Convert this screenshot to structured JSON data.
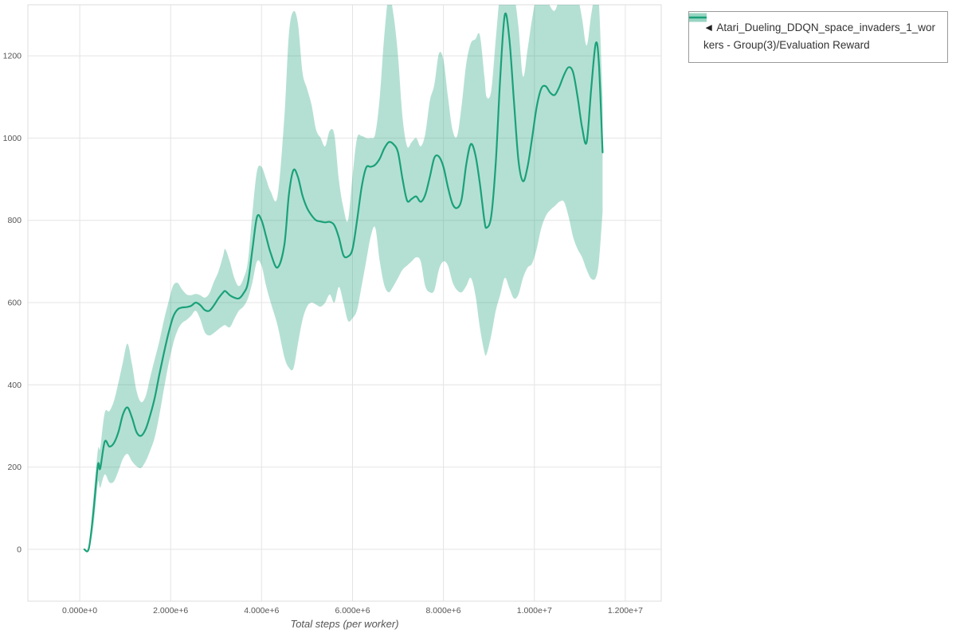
{
  "legend": {
    "marker": "◄",
    "label": "Atari_Dueling_DDQN_space_invaders_1_workers - Group(3)/Evaluation Reward"
  },
  "colors": {
    "line": "#1aa179",
    "band": "#1aa179",
    "band_opacity": 0.33,
    "grid": "#e4e4e4",
    "plot_border": "#dddddd",
    "axis_text": "#555555"
  },
  "chart_data": {
    "type": "line",
    "title": "",
    "xlabel": "Total steps (per worker)",
    "ylabel": "",
    "series_name": "Atari_Dueling_DDQN_space_invaders_1_workers - Group(3)/Evaluation Reward",
    "legend_position": "top-right-outside",
    "grid": true,
    "x_unit": 1000000,
    "xlim": [
      -1140000,
      12790000
    ],
    "ylim": [
      -126,
      1324
    ],
    "x_ticks": [
      0,
      2000000,
      4000000,
      6000000,
      8000000,
      10000000,
      12000000
    ],
    "x_tick_labels": [
      "0.000e+0",
      "2.000e+6",
      "4.000e+6",
      "6.000e+6",
      "8.000e+6",
      "1.000e+7",
      "1.200e+7"
    ],
    "y_ticks": [
      0,
      200,
      400,
      600,
      800,
      1000,
      1200
    ],
    "y_tick_labels": [
      "0",
      "200",
      "400",
      "600",
      "800",
      "1000",
      "1200"
    ],
    "points_format": [
      "x_millions",
      "mean",
      "band_lower",
      "band_upper"
    ],
    "points": [
      [
        0.1,
        0,
        0,
        0
      ],
      [
        0.2,
        2,
        0,
        6
      ],
      [
        0.3,
        90,
        55,
        125
      ],
      [
        0.4,
        205,
        162,
        242
      ],
      [
        0.45,
        196,
        150,
        246
      ],
      [
        0.55,
        262,
        182,
        332
      ],
      [
        0.65,
        250,
        163,
        336
      ],
      [
        0.75,
        258,
        165,
        360
      ],
      [
        0.85,
        285,
        190,
        405
      ],
      [
        0.95,
        328,
        220,
        455
      ],
      [
        1.05,
        345,
        232,
        500
      ],
      [
        1.15,
        320,
        214,
        450
      ],
      [
        1.25,
        285,
        202,
        385
      ],
      [
        1.35,
        276,
        198,
        358
      ],
      [
        1.45,
        292,
        214,
        372
      ],
      [
        1.55,
        326,
        240,
        418
      ],
      [
        1.65,
        368,
        272,
        462
      ],
      [
        1.75,
        424,
        325,
        505
      ],
      [
        1.85,
        476,
        388,
        556
      ],
      [
        1.95,
        524,
        448,
        600
      ],
      [
        2.05,
        564,
        498,
        640
      ],
      [
        2.15,
        583,
        532,
        648
      ],
      [
        2.25,
        588,
        550,
        632
      ],
      [
        2.35,
        589,
        558,
        620
      ],
      [
        2.45,
        592,
        568,
        618
      ],
      [
        2.55,
        600,
        580,
        621
      ],
      [
        2.65,
        594,
        560,
        618
      ],
      [
        2.75,
        582,
        528,
        612
      ],
      [
        2.85,
        580,
        520,
        622
      ],
      [
        2.95,
        593,
        526,
        650
      ],
      [
        3.05,
        610,
        535,
        675
      ],
      [
        3.15,
        624,
        543,
        712
      ],
      [
        3.2,
        628,
        545,
        730
      ],
      [
        3.3,
        618,
        540,
        700
      ],
      [
        3.4,
        612,
        560,
        660
      ],
      [
        3.5,
        610,
        580,
        640
      ],
      [
        3.6,
        622,
        590,
        658
      ],
      [
        3.7,
        648,
        610,
        700
      ],
      [
        3.8,
        730,
        650,
        820
      ],
      [
        3.9,
        808,
        700,
        920
      ],
      [
        4.0,
        800,
        690,
        930
      ],
      [
        4.1,
        760,
        640,
        900
      ],
      [
        4.2,
        720,
        600,
        870
      ],
      [
        4.35,
        685,
        545,
        858
      ],
      [
        4.5,
        740,
        468,
        1050
      ],
      [
        4.6,
        862,
        442,
        1252
      ],
      [
        4.7,
        922,
        440,
        1308
      ],
      [
        4.8,
        905,
        500,
        1278
      ],
      [
        4.9,
        860,
        558,
        1160
      ],
      [
        5.0,
        830,
        590,
        1120
      ],
      [
        5.1,
        812,
        600,
        1080
      ],
      [
        5.2,
        800,
        595,
        1020
      ],
      [
        5.3,
        797,
        590,
        1000
      ],
      [
        5.4,
        795,
        600,
        980
      ],
      [
        5.5,
        796,
        620,
        1018
      ],
      [
        5.6,
        788,
        600,
        1008
      ],
      [
        5.7,
        758,
        638,
        898
      ],
      [
        5.8,
        715,
        600,
        830
      ],
      [
        5.9,
        712,
        556,
        800
      ],
      [
        6.0,
        730,
        562,
        908
      ],
      [
        6.1,
        800,
        582,
        1000
      ],
      [
        6.2,
        880,
        640,
        1005
      ],
      [
        6.3,
        928,
        700,
        1000
      ],
      [
        6.4,
        930,
        760,
        1000
      ],
      [
        6.5,
        935,
        782,
        1010
      ],
      [
        6.6,
        950,
        700,
        1100
      ],
      [
        6.7,
        975,
        642,
        1250
      ],
      [
        6.8,
        990,
        625,
        1348
      ],
      [
        6.9,
        985,
        640,
        1300
      ],
      [
        7.0,
        965,
        660,
        1200
      ],
      [
        7.1,
        900,
        680,
        1050
      ],
      [
        7.2,
        848,
        690,
        980
      ],
      [
        7.3,
        852,
        700,
        990
      ],
      [
        7.4,
        858,
        710,
        1000
      ],
      [
        7.5,
        845,
        700,
        980
      ],
      [
        7.6,
        862,
        640,
        1010
      ],
      [
        7.7,
        905,
        625,
        1090
      ],
      [
        7.8,
        952,
        630,
        1130
      ],
      [
        7.9,
        955,
        680,
        1205
      ],
      [
        8.0,
        930,
        700,
        1190
      ],
      [
        8.1,
        880,
        690,
        1100
      ],
      [
        8.2,
        840,
        650,
        1020
      ],
      [
        8.3,
        830,
        630,
        1005
      ],
      [
        8.4,
        852,
        625,
        1080
      ],
      [
        8.5,
        935,
        640,
        1180
      ],
      [
        8.6,
        985,
        660,
        1230
      ],
      [
        8.7,
        960,
        620,
        1240
      ],
      [
        8.8,
        890,
        540,
        1250
      ],
      [
        8.9,
        800,
        480,
        1150
      ],
      [
        8.95,
        782,
        475,
        1100
      ],
      [
        9.05,
        810,
        520,
        1115
      ],
      [
        9.15,
        940,
        580,
        1240
      ],
      [
        9.25,
        1150,
        620,
        1355
      ],
      [
        9.35,
        1300,
        660,
        1362
      ],
      [
        9.45,
        1240,
        635,
        1360
      ],
      [
        9.55,
        1090,
        610,
        1350
      ],
      [
        9.65,
        945,
        620,
        1270
      ],
      [
        9.75,
        895,
        660,
        1150
      ],
      [
        9.85,
        930,
        685,
        1215
      ],
      [
        9.95,
        1000,
        695,
        1290
      ],
      [
        10.05,
        1075,
        730,
        1345
      ],
      [
        10.15,
        1120,
        780,
        1358
      ],
      [
        10.25,
        1126,
        810,
        1350
      ],
      [
        10.35,
        1110,
        825,
        1320
      ],
      [
        10.45,
        1105,
        835,
        1310
      ],
      [
        10.55,
        1125,
        845,
        1340
      ],
      [
        10.65,
        1153,
        845,
        1360
      ],
      [
        10.75,
        1172,
        810,
        1360
      ],
      [
        10.85,
        1160,
        760,
        1360
      ],
      [
        10.95,
        1100,
        730,
        1345
      ],
      [
        11.05,
        1025,
        710,
        1290
      ],
      [
        11.15,
        990,
        680,
        1225
      ],
      [
        11.25,
        1120,
        658,
        1300
      ],
      [
        11.35,
        1230,
        660,
        1360
      ],
      [
        11.42,
        1180,
        700,
        1330
      ],
      [
        11.5,
        965,
        820,
        1100
      ]
    ]
  }
}
